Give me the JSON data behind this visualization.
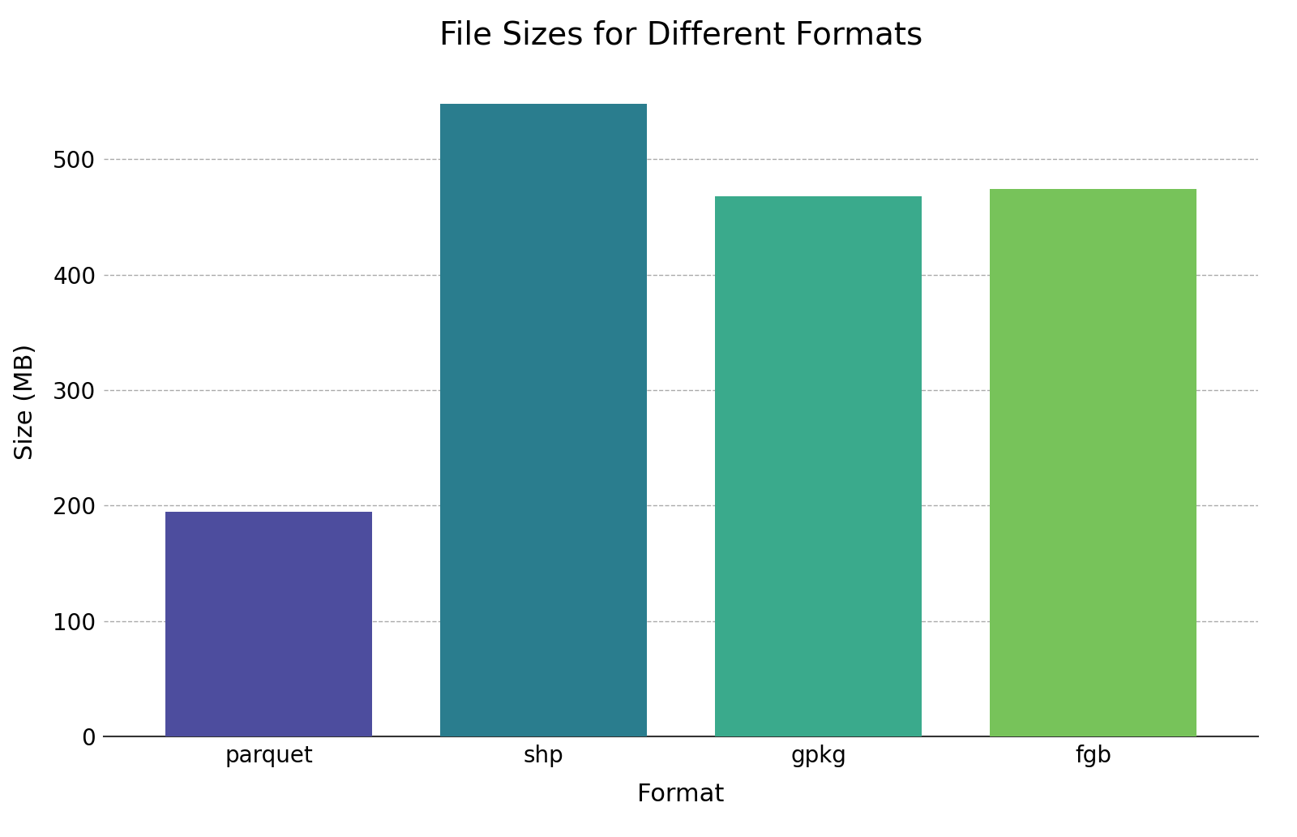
{
  "categories": [
    "parquet",
    "shp",
    "gpkg",
    "fgb"
  ],
  "values": [
    195,
    548,
    468,
    474
  ],
  "bar_colors": [
    "#4d4d9e",
    "#2a7d8e",
    "#3aaa8c",
    "#77c35a"
  ],
  "title": "File Sizes for Different Formats",
  "xlabel": "Format",
  "ylabel": "Size (MB)",
  "ylim": [
    0,
    580
  ],
  "yticks": [
    0,
    100,
    200,
    300,
    400,
    500
  ],
  "title_fontsize": 28,
  "axis_label_fontsize": 22,
  "tick_fontsize": 20,
  "grid_color": "#aaaaaa",
  "grid_linestyle": "--",
  "background_color": "#ffffff",
  "bar_width": 0.75
}
